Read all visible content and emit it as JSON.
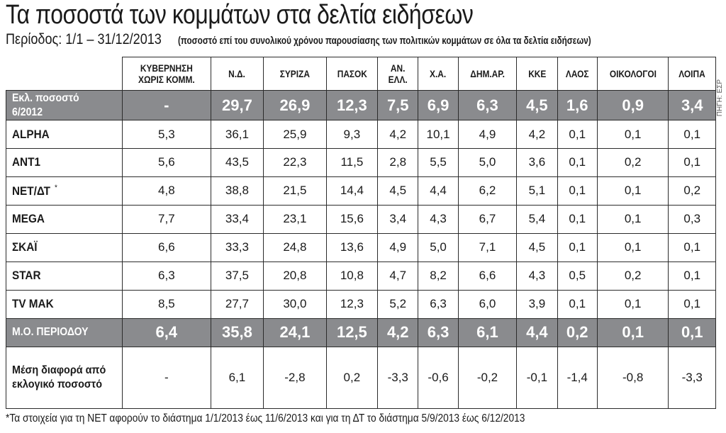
{
  "title": "Τα ποσοστά των κομμάτων στα δελτία ειδήσεων",
  "subtitle": {
    "period": "Περίοδος: 1/1 – 31/12/2013",
    "note": "(ποσοστό επί του συνολικού χρόνου παρουσίασης των πολιτικών κομμάτων σε όλα τα δελτία ειδήσεων)"
  },
  "source": "ΠΗΓΗ: ΕΣΡ",
  "footnote": "*Τα στοιχεία για τη ΝΕΤ αφορούν το διάστημα 1/1/2013 έως 11/6/2013 και για τη ΔΤ το διάστημα 5/9/2013 έως 6/12/2013",
  "colors": {
    "highlight_row": "#8a8b8e",
    "border": "#2b2b2b",
    "text": "#1a1a1a"
  },
  "chart_data": {
    "type": "table",
    "title": "Τα ποσοστά των κομμάτων στα δελτία ειδήσεων",
    "columns": [
      "ΚΥΒΕΡΝΗΣΗ ΧΩΡΙΣ ΚΟΜΜ.",
      "Ν.Δ.",
      "ΣΥΡΙΖΑ",
      "ΠΑΣΟΚ",
      "ΑΝ. ΕΛΛ.",
      "Χ.Α.",
      "ΔΗΜ.ΑΡ.",
      "ΚΚΕ",
      "ΛΑΟΣ",
      "ΟΙΚΟΛΟΓΟΙ",
      "ΛΟΙΠΑ"
    ],
    "rows": [
      {
        "label": "Εκλ. ποσοστό 6/2012",
        "footnote_mark": "",
        "highlight": true,
        "values": [
          "-",
          "29,7",
          "26,9",
          "12,3",
          "7,5",
          "6,9",
          "6,3",
          "4,5",
          "1,6",
          "0,9",
          "3,4"
        ]
      },
      {
        "label": "ALPHA",
        "footnote_mark": "",
        "highlight": false,
        "values": [
          "5,3",
          "36,1",
          "25,9",
          "9,3",
          "4,2",
          "10,1",
          "4,9",
          "4,2",
          "0,1",
          "0,1",
          "0,1"
        ]
      },
      {
        "label": "ANT1",
        "footnote_mark": "",
        "highlight": false,
        "values": [
          "5,6",
          "43,5",
          "22,3",
          "11,5",
          "2,8",
          "5,5",
          "5,0",
          "3,6",
          "0,1",
          "0,2",
          "0,1"
        ]
      },
      {
        "label": "NET/ΔΤ",
        "footnote_mark": "*",
        "highlight": false,
        "values": [
          "4,8",
          "38,8",
          "21,5",
          "14,4",
          "4,5",
          "4,4",
          "6,2",
          "5,1",
          "0,1",
          "0,1",
          "0,2"
        ]
      },
      {
        "label": "MEGA",
        "footnote_mark": "",
        "highlight": false,
        "values": [
          "7,7",
          "33,4",
          "23,1",
          "15,6",
          "3,4",
          "4,3",
          "6,7",
          "5,4",
          "0,1",
          "0,1",
          "0,3"
        ]
      },
      {
        "label": "ΣΚΑΪ",
        "footnote_mark": "",
        "highlight": false,
        "values": [
          "6,6",
          "33,3",
          "24,8",
          "13,6",
          "4,9",
          "5,0",
          "7,1",
          "4,5",
          "0,1",
          "0,1",
          "0,1"
        ]
      },
      {
        "label": "STAR",
        "footnote_mark": "",
        "highlight": false,
        "values": [
          "6,3",
          "37,5",
          "20,8",
          "10,8",
          "4,7",
          "8,2",
          "6,6",
          "4,3",
          "0,5",
          "0,2",
          "0,1"
        ]
      },
      {
        "label": "TV MAK",
        "footnote_mark": "",
        "highlight": false,
        "values": [
          "8,5",
          "27,7",
          "30,0",
          "12,3",
          "5,2",
          "6,3",
          "6,0",
          "3,9",
          "0,1",
          "0,1",
          "0,1"
        ]
      },
      {
        "label": "Μ.Ο. ΠΕΡΙΟΔΟΥ",
        "footnote_mark": "",
        "highlight": true,
        "values": [
          "6,4",
          "35,8",
          "24,1",
          "12,5",
          "4,2",
          "6,3",
          "6,1",
          "4,4",
          "0,2",
          "0,1",
          "0,1"
        ]
      },
      {
        "label": "Μέση διαφορά από εκλογικό ποσοστό",
        "footnote_mark": "",
        "highlight": false,
        "values": [
          "-",
          "6,1",
          "-2,8",
          "0,2",
          "-3,3",
          "-0,6",
          "-0,2",
          "-0,1",
          "-1,4",
          "-0,8",
          "-3,3"
        ]
      }
    ]
  }
}
